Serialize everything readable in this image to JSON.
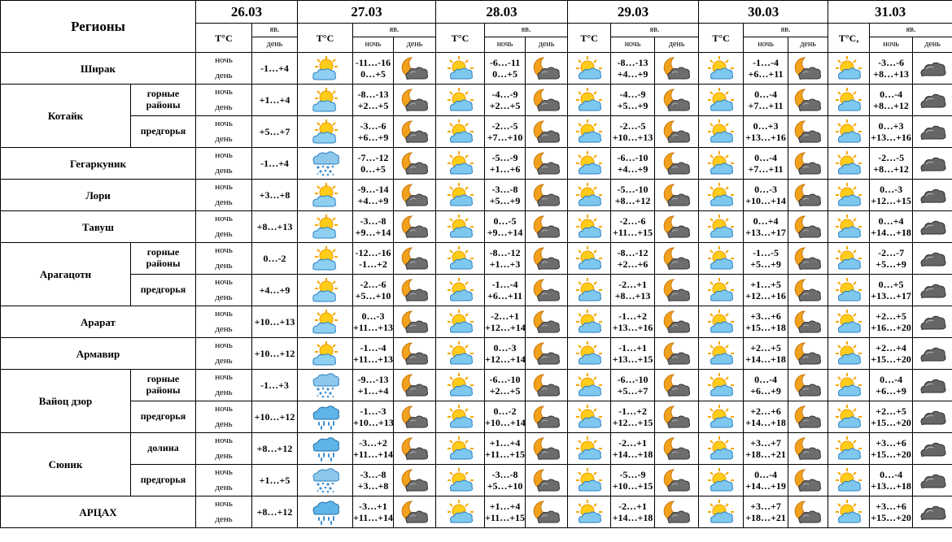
{
  "header": {
    "regions_label": "Регионы",
    "temp_label": "T°C",
    "temp_label_last": "T°C,",
    "phen_label": "яв.",
    "night_label": "ночь",
    "day_label": "день"
  },
  "dates": [
    {
      "date": "26.03",
      "single": true
    },
    {
      "date": "27.03"
    },
    {
      "date": "28.03"
    },
    {
      "date": "29.03"
    },
    {
      "date": "30.03"
    },
    {
      "date": "31.03"
    }
  ],
  "regions": [
    {
      "name": "Ширак",
      "subs": [
        {
          "label": "",
          "d26": {
            "t": "-1…+4",
            "icon": "partly-cloudy-sun-icon"
          },
          "days": [
            {
              "tn": "-11…-16",
              "td": "0…+5",
              "ni": "moon-cloud-icon",
              "di": "sun-cloud-icon"
            },
            {
              "tn": "-6…-11",
              "td": "0…+5",
              "ni": "moon-cloud-icon",
              "di": "sun-cloud-icon"
            },
            {
              "tn": "-8…-13",
              "td": "+4…+9",
              "ni": "moon-cloud-icon",
              "di": "sun-cloud-icon"
            },
            {
              "tn": "-1…-4",
              "td": "+6…+11",
              "ni": "moon-cloud-icon",
              "di": "sun-cloud-icon"
            },
            {
              "tn": "-3…-6",
              "td": "+8…+13",
              "ni": "dark-cloud-icon",
              "di": "sun-cloud-icon"
            }
          ]
        }
      ]
    },
    {
      "name": "Котайк",
      "subs": [
        {
          "label": "горные районы",
          "d26": {
            "t": "+1…+4",
            "icon": "partly-cloudy-sun-icon"
          },
          "days": [
            {
              "tn": "-8…-13",
              "td": "+2…+5",
              "ni": "moon-cloud-icon",
              "di": "sun-cloud-icon"
            },
            {
              "tn": "-4…-9",
              "td": "+2…+5",
              "ni": "moon-cloud-icon",
              "di": "sun-cloud-icon"
            },
            {
              "tn": "-4…-9",
              "td": "+5…+9",
              "ni": "moon-cloud-icon",
              "di": "sun-cloud-icon"
            },
            {
              "tn": "0…-4",
              "td": "+7…+11",
              "ni": "moon-cloud-icon",
              "di": "sun-cloud-icon"
            },
            {
              "tn": "0…-4",
              "td": "+8…+12",
              "ni": "dark-cloud-icon",
              "di": "sun-cloud-icon"
            }
          ]
        },
        {
          "label": "предгорья",
          "d26": {
            "t": "+5…+7",
            "icon": "partly-cloudy-sun-icon"
          },
          "days": [
            {
              "tn": "-3…-6",
              "td": "+6…+9",
              "ni": "moon-cloud-icon",
              "di": "sun-cloud-icon"
            },
            {
              "tn": "-2…-5",
              "td": "+7…+10",
              "ni": "moon-cloud-icon",
              "di": "sun-cloud-icon"
            },
            {
              "tn": "-2…-5",
              "td": "+10…+13",
              "ni": "moon-cloud-icon",
              "di": "sun-cloud-icon"
            },
            {
              "tn": "0…+3",
              "td": "+13…+16",
              "ni": "moon-cloud-icon",
              "di": "sun-cloud-icon"
            },
            {
              "tn": "0…+3",
              "td": "+13…+16",
              "ni": "dark-cloud-icon",
              "di": "dark-cloud-icon"
            }
          ]
        }
      ]
    },
    {
      "name": "Гегаркуник",
      "subs": [
        {
          "label": "",
          "d26": {
            "t": "-1…+4",
            "icon": "cloud-rain-snow-icon"
          },
          "days": [
            {
              "tn": "-7…-12",
              "td": "0…+5",
              "ni": "moon-cloud-icon",
              "di": "sun-cloud-icon"
            },
            {
              "tn": "-5…-9",
              "td": "+1…+6",
              "ni": "moon-cloud-icon",
              "di": "sun-cloud-icon"
            },
            {
              "tn": "-6…-10",
              "td": "+4…+9",
              "ni": "moon-cloud-icon",
              "di": "sun-cloud-icon"
            },
            {
              "tn": "0…-4",
              "td": "+7…+11",
              "ni": "moon-cloud-icon",
              "di": "sun-cloud-icon"
            },
            {
              "tn": "-2…-5",
              "td": "+8…+12",
              "ni": "dark-cloud-icon",
              "di": "dark-cloud-icon"
            }
          ]
        }
      ]
    },
    {
      "name": "Лори",
      "subs": [
        {
          "label": "",
          "d26": {
            "t": "+3…+8",
            "icon": "partly-cloudy-sun-icon"
          },
          "days": [
            {
              "tn": "-9…-14",
              "td": "+4…+9",
              "ni": "moon-cloud-icon",
              "di": "sun-cloud-icon"
            },
            {
              "tn": "-3…-8",
              "td": "+5…+9",
              "ni": "moon-cloud-icon",
              "di": "sun-cloud-icon"
            },
            {
              "tn": "-5…-10",
              "td": "+8…+12",
              "ni": "moon-cloud-icon",
              "di": "sun-cloud-icon"
            },
            {
              "tn": "0…-3",
              "td": "+10…+14",
              "ni": "moon-cloud-icon",
              "di": "sun-cloud-icon"
            },
            {
              "tn": "0…-3",
              "td": "+12…+15",
              "ni": "dark-cloud-icon",
              "di": "sun-cloud-icon"
            }
          ]
        }
      ]
    },
    {
      "name": "Тавуш",
      "subs": [
        {
          "label": "",
          "d26": {
            "t": "+8…+13",
            "icon": "partly-cloudy-sun-icon"
          },
          "days": [
            {
              "tn": "-3…-8",
              "td": "+9…+14",
              "ni": "moon-cloud-icon",
              "di": "sun-cloud-icon"
            },
            {
              "tn": "0…-5",
              "td": "+9…+14",
              "ni": "moon-cloud-icon",
              "di": "sun-cloud-icon"
            },
            {
              "tn": "-2…-6",
              "td": "+11…+15",
              "ni": "moon-cloud-icon",
              "di": "sun-cloud-icon"
            },
            {
              "tn": "0…+4",
              "td": "+13…+17",
              "ni": "moon-cloud-icon",
              "di": "sun-cloud-icon"
            },
            {
              "tn": "0…+4",
              "td": "+14…+18",
              "ni": "dark-cloud-icon",
              "di": "sun-cloud-icon"
            }
          ]
        }
      ]
    },
    {
      "name": "Арагацотн",
      "subs": [
        {
          "label": "горные районы",
          "d26": {
            "t": "0…-2",
            "icon": "partly-cloudy-sun-icon"
          },
          "days": [
            {
              "tn": "-12…-16",
              "td": "-1…+2",
              "ni": "moon-cloud-icon",
              "di": "sun-cloud-icon"
            },
            {
              "tn": "-8…-12",
              "td": "+1…+3",
              "ni": "moon-cloud-icon",
              "di": "sun-cloud-icon"
            },
            {
              "tn": "-8…-12",
              "td": "+2…+6",
              "ni": "moon-cloud-icon",
              "di": "sun-cloud-icon"
            },
            {
              "tn": "-1…-5",
              "td": "+5…+9",
              "ni": "moon-cloud-icon",
              "di": "sun-cloud-icon"
            },
            {
              "tn": "-2…-7",
              "td": "+5…+9",
              "ni": "dark-cloud-icon",
              "di": "sun-cloud-icon"
            }
          ]
        },
        {
          "label": "предгорья",
          "d26": {
            "t": "+4…+9",
            "icon": "partly-cloudy-sun-icon"
          },
          "days": [
            {
              "tn": "-2…-6",
              "td": "+5…+10",
              "ni": "moon-cloud-icon",
              "di": "sun-cloud-icon"
            },
            {
              "tn": "-1…-4",
              "td": "+6…+11",
              "ni": "moon-cloud-icon",
              "di": "sun-cloud-icon"
            },
            {
              "tn": "-2…+1",
              "td": "+8…+13",
              "ni": "moon-cloud-icon",
              "di": "sun-cloud-icon"
            },
            {
              "tn": "+1…+5",
              "td": "+12…+16",
              "ni": "moon-cloud-icon",
              "di": "sun-cloud-icon"
            },
            {
              "tn": "0…+5",
              "td": "+13…+17",
              "ni": "dark-cloud-icon",
              "di": "sun-cloud-icon"
            }
          ]
        }
      ]
    },
    {
      "name": "Арарат",
      "subs": [
        {
          "label": "",
          "d26": {
            "t": "+10…+13",
            "icon": "partly-cloudy-sun-icon"
          },
          "days": [
            {
              "tn": "0…-3",
              "td": "+11…+13",
              "ni": "moon-cloud-icon",
              "di": "sun-cloud-icon"
            },
            {
              "tn": "-2…+1",
              "td": "+12…+14",
              "ni": "moon-cloud-icon",
              "di": "sun-cloud-icon"
            },
            {
              "tn": "-1…+2",
              "td": "+13…+16",
              "ni": "moon-cloud-icon",
              "di": "sun-cloud-icon"
            },
            {
              "tn": "+3…+6",
              "td": "+15…+18",
              "ni": "moon-cloud-icon",
              "di": "sun-cloud-icon"
            },
            {
              "tn": "+2…+5",
              "td": "+16…+20",
              "ni": "dark-cloud-icon",
              "di": "sun-cloud-icon"
            }
          ]
        }
      ]
    },
    {
      "name": "Армавир",
      "subs": [
        {
          "label": "",
          "d26": {
            "t": "+10…+12",
            "icon": "partly-cloudy-sun-icon"
          },
          "days": [
            {
              "tn": "-1…-4",
              "td": "+11…+13",
              "ni": "moon-cloud-icon",
              "di": "sun-cloud-icon"
            },
            {
              "tn": "0…-3",
              "td": "+12…+14",
              "ni": "moon-cloud-icon",
              "di": "sun-cloud-icon"
            },
            {
              "tn": "-1…+1",
              "td": "+13…+15",
              "ni": "moon-cloud-icon",
              "di": "sun-cloud-icon"
            },
            {
              "tn": "+2…+5",
              "td": "+14…+18",
              "ni": "moon-cloud-icon",
              "di": "sun-cloud-icon"
            },
            {
              "tn": "+2…+4",
              "td": "+15…+20",
              "ni": "dark-cloud-icon",
              "di": "sun-cloud-icon"
            }
          ]
        }
      ]
    },
    {
      "name": "Вайоц дзор",
      "subs": [
        {
          "label": "горные районы",
          "d26": {
            "t": "-1…+3",
            "icon": "cloud-rain-snow-icon"
          },
          "days": [
            {
              "tn": "-9…-13",
              "td": "+1…+4",
              "ni": "moon-cloud-icon",
              "di": "sun-cloud-icon"
            },
            {
              "tn": "-6…-10",
              "td": "+2…+5",
              "ni": "moon-cloud-icon",
              "di": "sun-cloud-icon"
            },
            {
              "tn": "-6…-10",
              "td": "+5…+7",
              "ni": "moon-cloud-icon",
              "di": "sun-cloud-icon"
            },
            {
              "tn": "0…-4",
              "td": "+6…+9",
              "ni": "moon-cloud-icon",
              "di": "sun-cloud-icon"
            },
            {
              "tn": "0…-4",
              "td": "+6…+9",
              "ni": "dark-cloud-icon",
              "di": "sun-cloud-icon"
            }
          ]
        },
        {
          "label": "предгорья",
          "d26": {
            "t": "+10…+12",
            "icon": "cloud-rain-icon"
          },
          "days": [
            {
              "tn": "-1…-3",
              "td": "+10…+13",
              "ni": "moon-cloud-icon",
              "di": "sun-cloud-icon"
            },
            {
              "tn": "0…-2",
              "td": "+10…+14",
              "ni": "moon-cloud-icon",
              "di": "sun-cloud-icon"
            },
            {
              "tn": "-1…+2",
              "td": "+12…+15",
              "ni": "moon-cloud-icon",
              "di": "sun-cloud-icon"
            },
            {
              "tn": "+2…+6",
              "td": "+14…+18",
              "ni": "moon-cloud-icon",
              "di": "sun-cloud-icon"
            },
            {
              "tn": "+2…+5",
              "td": "+15…+20",
              "ni": "dark-cloud-icon",
              "di": "sun-cloud-icon"
            }
          ]
        }
      ]
    },
    {
      "name": "Сюник",
      "subs": [
        {
          "label": "долина",
          "d26": {
            "t": "+8…+12",
            "icon": "cloud-rain-icon"
          },
          "days": [
            {
              "tn": "-3…+2",
              "td": "+11…+14",
              "ni": "moon-cloud-icon",
              "di": "sun-cloud-icon"
            },
            {
              "tn": "+1…+4",
              "td": "+11…+15",
              "ni": "moon-cloud-icon",
              "di": "sun-cloud-icon"
            },
            {
              "tn": "-2…+1",
              "td": "+14…+18",
              "ni": "moon-cloud-icon",
              "di": "sun-cloud-icon"
            },
            {
              "tn": "+3…+7",
              "td": "+18…+21",
              "ni": "moon-cloud-icon",
              "di": "sun-cloud-icon"
            },
            {
              "tn": "+3…+6",
              "td": "+15…+20",
              "ni": "dark-cloud-icon",
              "di": "sun-cloud-icon"
            }
          ]
        },
        {
          "label": "предгорья",
          "d26": {
            "t": "+1…+5",
            "icon": "cloud-rain-snow-icon"
          },
          "days": [
            {
              "tn": "-3…-8",
              "td": "+3…+8",
              "ni": "moon-cloud-icon",
              "di": "sun-cloud-icon"
            },
            {
              "tn": "-3…-8",
              "td": "+5…+10",
              "ni": "moon-cloud-icon",
              "di": "sun-cloud-icon"
            },
            {
              "tn": "-5…-9",
              "td": "+10…+15",
              "ni": "moon-cloud-icon",
              "di": "sun-cloud-icon"
            },
            {
              "tn": "0…-4",
              "td": "+14…+19",
              "ni": "moon-cloud-icon",
              "di": "sun-cloud-icon"
            },
            {
              "tn": "0…-4",
              "td": "+13…+18",
              "ni": "dark-cloud-icon",
              "di": "sun-cloud-icon"
            }
          ]
        }
      ]
    },
    {
      "name": "АРЦАХ",
      "subs": [
        {
          "label": "",
          "d26": {
            "t": "+8…+12",
            "icon": "cloud-rain-icon"
          },
          "days": [
            {
              "tn": "-3…+1",
              "td": "+11…+14",
              "ni": "moon-cloud-icon",
              "di": "sun-cloud-icon"
            },
            {
              "tn": "+1…+4",
              "td": "+11…+15",
              "ni": "moon-cloud-icon",
              "di": "sun-cloud-icon"
            },
            {
              "tn": "-2…+1",
              "td": "+14…+18",
              "ni": "moon-cloud-icon",
              "di": "sun-cloud-icon"
            },
            {
              "tn": "+3…+7",
              "td": "+18…+21",
              "ni": "moon-cloud-icon",
              "di": "sun-cloud-icon"
            },
            {
              "tn": "+3…+6",
              "td": "+15…+20",
              "ni": "dark-cloud-icon",
              "di": "sun-cloud-icon"
            }
          ]
        }
      ]
    }
  ]
}
